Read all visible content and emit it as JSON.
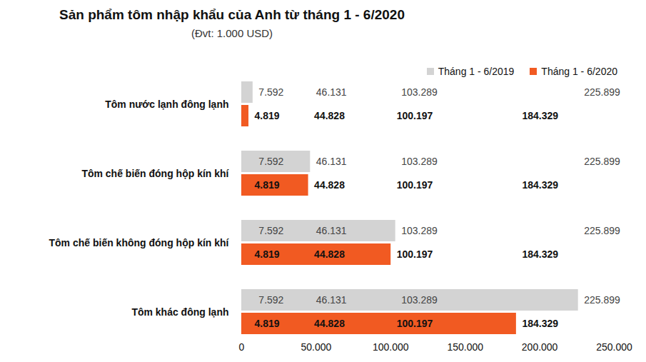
{
  "chart_data": {
    "type": "bar",
    "orientation": "horizontal",
    "title": "Sản phẩm tôm nhập khẩu của Anh từ tháng 1 - 6/2020",
    "subtitle": "(Đvt: 1.000 USD)",
    "categories": [
      "Tôm nước lạnh đông lạnh",
      "Tôm chế biến đóng hộp kín khí",
      "Tôm chế biến không đóng hộp kín khí",
      "Tôm khác đông lạnh"
    ],
    "series": [
      {
        "name": "Tháng 1 - 6/2019",
        "color": "#d3d3d3",
        "values": [
          7592,
          46131,
          103289,
          225899
        ],
        "value_labels": [
          "7.592",
          "46.131",
          "103.289",
          "225.899"
        ]
      },
      {
        "name": "Tháng 1 - 6/2020",
        "color": "#f15a22",
        "values": [
          4819,
          44828,
          100197,
          184329
        ],
        "value_labels": [
          "4.819",
          "44.828",
          "100.197",
          "184.329"
        ]
      }
    ],
    "xlim": [
      0,
      250000
    ],
    "xticks": [
      0,
      {
        "value": 50000,
        "label": "50.000"
      },
      {
        "value": 100000,
        "label": "100.000"
      },
      {
        "value": 150000,
        "label": "150.000"
      },
      {
        "value": 200000,
        "label": "200.000"
      },
      {
        "value": 250000,
        "label": "250.000"
      }
    ],
    "grid": false,
    "legend": "top-right",
    "data_labels": true
  }
}
